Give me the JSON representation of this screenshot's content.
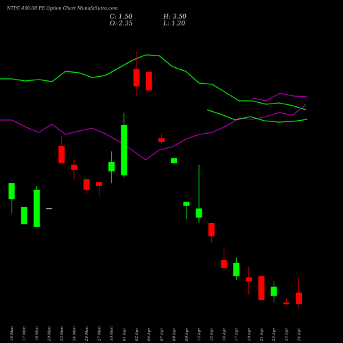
{
  "title": "NTPC 400.00 PE Option Chart MunafaSutra.com",
  "ohlc": {
    "c_label": "C: 1.50",
    "h_label": "H: 3.50",
    "o_label": "O: 2.35",
    "l_label": "L: 1.20"
  },
  "colors": {
    "background": "#000000",
    "up": "#00ff00",
    "down": "#ff0000",
    "flat": "#ffffff",
    "line_green": "#00ee00",
    "line_purple": "#aa00aa"
  },
  "chart_data": {
    "type": "candlestick",
    "title": "NTPC 400.00 PE Option Chart MunafaSutra.com",
    "categories": [
      "16 Mon",
      "17 Mon",
      "18 Mon",
      "20 Mon",
      "23 Mon",
      "24 Mon",
      "26 Mon",
      "27 Mon",
      "30 Mon",
      "01 Apr",
      "02 Apr",
      "06 Apr",
      "07 Apr",
      "08 Apr",
      "09 Apr",
      "13 Apr",
      "15 Apr",
      "16 Apr",
      "17 Apr",
      "20 Apr",
      "21 Apr",
      "22 Apr",
      "23 Apr",
      "24 Apr"
    ],
    "candles": [
      {
        "o": 9.4,
        "h": 10.6,
        "l": 8.3,
        "c": 10.6
      },
      {
        "o": 7.5,
        "h": 8.8,
        "l": 7.5,
        "c": 8.8
      },
      {
        "o": 7.3,
        "h": 10.4,
        "l": 7.3,
        "c": 10.1
      },
      {
        "o": 8.7,
        "h": 8.7,
        "l": 8.7,
        "c": 8.7
      },
      {
        "o": 13.4,
        "h": 14.1,
        "l": 12.1,
        "c": 12.1
      },
      {
        "o": 12.0,
        "h": 12.4,
        "l": 10.9,
        "c": 11.6
      },
      {
        "o": 10.9,
        "h": 10.9,
        "l": 9.8,
        "c": 10.1
      },
      {
        "o": 10.7,
        "h": 10.7,
        "l": 9.6,
        "c": 10.4
      },
      {
        "o": 11.5,
        "h": 13.0,
        "l": 10.6,
        "c": 12.2
      },
      {
        "o": 11.2,
        "h": 15.9,
        "l": 11.0,
        "c": 15.0
      },
      {
        "o": 19.2,
        "h": 20.5,
        "l": 17.2,
        "c": 17.9
      },
      {
        "o": 19.0,
        "h": 19.0,
        "l": 17.5,
        "c": 17.6
      },
      {
        "o": 14.0,
        "h": 14.3,
        "l": 13.6,
        "c": 13.7
      },
      {
        "o": 12.1,
        "h": 12.5,
        "l": 12.1,
        "c": 12.5
      },
      {
        "o": 8.9,
        "h": 9.2,
        "l": 7.9,
        "c": 9.2
      },
      {
        "o": 8.0,
        "h": 12.0,
        "l": 7.6,
        "c": 8.7
      },
      {
        "o": 7.6,
        "h": 7.6,
        "l": 6.1,
        "c": 6.6
      },
      {
        "o": 4.8,
        "h": 5.8,
        "l": 4.0,
        "c": 4.2
      },
      {
        "o": 3.6,
        "h": 5.0,
        "l": 3.3,
        "c": 4.6
      },
      {
        "o": 3.5,
        "h": 4.3,
        "l": 2.2,
        "c": 3.2
      },
      {
        "o": 3.6,
        "h": 3.6,
        "l": 2.0,
        "c": 1.8
      },
      {
        "o": 2.1,
        "h": 3.2,
        "l": 1.6,
        "c": 2.8
      },
      {
        "o": 1.6,
        "h": 1.9,
        "l": 1.4,
        "c": 1.5
      },
      {
        "o": 2.35,
        "h": 3.5,
        "l": 1.2,
        "c": 1.5
      }
    ],
    "ylim": [
      0,
      24
    ],
    "overlay_lines": [
      {
        "color": "green",
        "values": [
          115,
          115,
          118,
          116,
          119,
          104,
          106,
          113,
          110,
          99,
          88,
          80,
          81,
          97,
          104,
          121,
          123,
          135,
          147,
          147,
          152,
          150,
          154,
          160
        ]
      },
      {
        "color": "purple",
        "values": [
          175,
          175,
          185,
          193,
          181,
          196,
          191,
          187,
          195,
          206,
          219,
          233,
          219,
          214,
          203,
          196,
          193,
          184,
          172,
          174,
          170,
          164,
          168,
          152
        ]
      },
      {
        "color": "green",
        "values": [
          160,
          167,
          175,
          170,
          176,
          178,
          177,
          174
        ]
      },
      {
        "color": "purple",
        "values": [
          143,
          147,
          136,
          140,
          141
        ]
      }
    ],
    "overlay_ylim": [
      0,
      300
    ]
  }
}
